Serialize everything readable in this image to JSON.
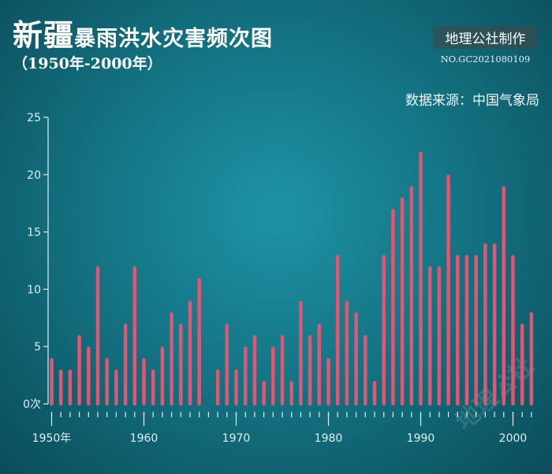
{
  "header": {
    "title_big": "新疆",
    "title_rest": "暴雨洪水灾害频次图",
    "subtitle": "（1950年-2000年）",
    "brand": "地理公社制作",
    "brand_code": "NO.GC2021080109",
    "source": "数据来源：中国气象局",
    "watermark": "地理公社"
  },
  "colors": {
    "bar": "#e05673",
    "axis": "#dfeff2"
  },
  "chart_data": {
    "type": "bar",
    "title": "新疆暴雨洪水灾害频次图",
    "subtitle": "（1950年-2000年）",
    "ylim": [
      0,
      25
    ],
    "yticks": [
      0,
      5,
      10,
      15,
      20,
      25
    ],
    "ytick_labels": [
      "0次",
      "5",
      "10",
      "15",
      "20",
      "25"
    ],
    "xtick_labels": [
      {
        "year": 1950,
        "label": "1950年"
      },
      {
        "year": 1960,
        "label": "1960"
      },
      {
        "year": 1970,
        "label": "1970"
      },
      {
        "year": 1980,
        "label": "1980"
      },
      {
        "year": 1990,
        "label": "1990"
      },
      {
        "year": 2000,
        "label": "2000"
      }
    ],
    "xlim": [
      1950,
      2003
    ],
    "categories": [
      1950,
      1951,
      1952,
      1953,
      1954,
      1955,
      1956,
      1957,
      1958,
      1959,
      1960,
      1961,
      1962,
      1963,
      1964,
      1965,
      1966,
      1967,
      1968,
      1969,
      1970,
      1971,
      1972,
      1973,
      1974,
      1975,
      1976,
      1977,
      1978,
      1979,
      1980,
      1981,
      1982,
      1983,
      1984,
      1985,
      1986,
      1987,
      1988,
      1989,
      1990,
      1991,
      1992,
      1993,
      1994,
      1995,
      1996,
      1997,
      1998,
      1999,
      2000,
      2001,
      2002
    ],
    "values": [
      4,
      3,
      3,
      6,
      5,
      12,
      4,
      3,
      7,
      12,
      4,
      3,
      5,
      8,
      7,
      9,
      11,
      0,
      3,
      7,
      3,
      5,
      6,
      2,
      5,
      6,
      2,
      9,
      6,
      7,
      4,
      13,
      9,
      8,
      6,
      2,
      13,
      17,
      18,
      19,
      22,
      12,
      12,
      20,
      13,
      13,
      13,
      14,
      14,
      19,
      13,
      7,
      8
    ],
    "grid": false
  }
}
